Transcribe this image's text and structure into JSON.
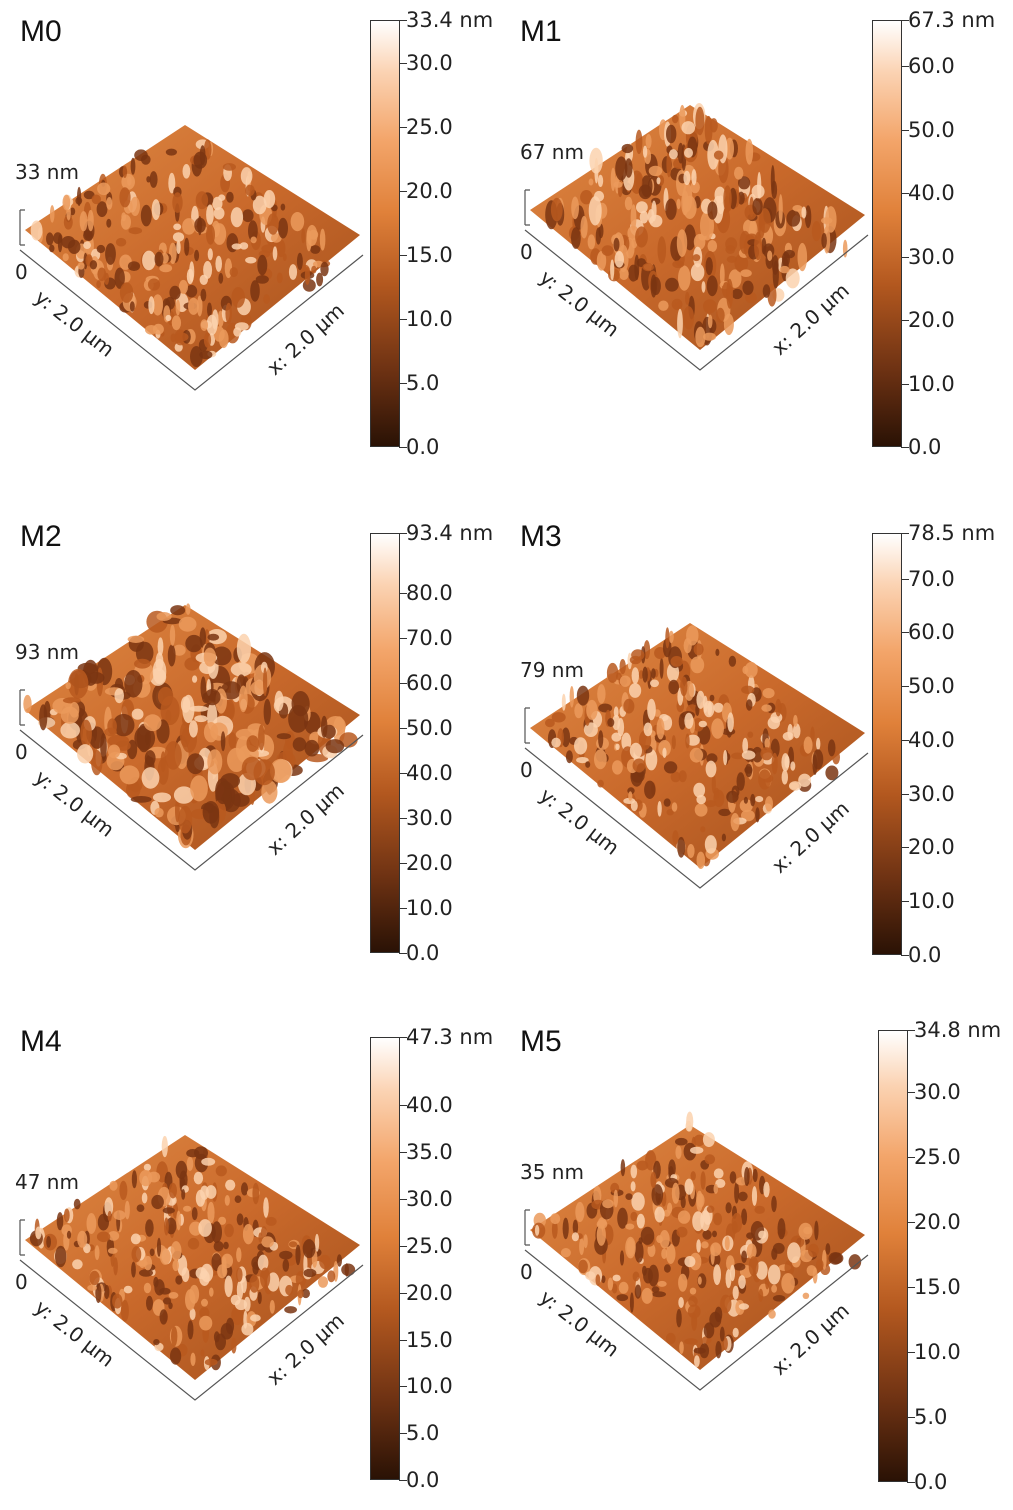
{
  "xy_axis": {
    "y_label": "y: 2.0 µm",
    "x_label": "x: 2.0 µm",
    "z_min_label": "0"
  },
  "colors": {
    "dark": "#2a1205",
    "mid": "#c8692a",
    "light": "#ffffff"
  },
  "panels": [
    {
      "id": "M0",
      "label": "M0",
      "z_max_label": "33 nm",
      "scale_max": "33.4 nm",
      "ticks": [
        "30.0",
        "25.0",
        "20.0",
        "15.0",
        "10.0",
        "5.0",
        "0.0"
      ],
      "tick_values": [
        30,
        25,
        20,
        15,
        10,
        5,
        0
      ],
      "max_value": 33.4
    },
    {
      "id": "M1",
      "label": "M1",
      "z_max_label": "67 nm",
      "scale_max": "67.3 nm",
      "ticks": [
        "60.0",
        "50.0",
        "40.0",
        "30.0",
        "20.0",
        "10.0",
        "0.0"
      ],
      "tick_values": [
        60,
        50,
        40,
        30,
        20,
        10,
        0
      ],
      "max_value": 67.3
    },
    {
      "id": "M2",
      "label": "M2",
      "z_max_label": "93 nm",
      "scale_max": "93.4 nm",
      "ticks": [
        "80.0",
        "70.0",
        "60.0",
        "50.0",
        "40.0",
        "30.0",
        "20.0",
        "10.0",
        "0.0"
      ],
      "tick_values": [
        80,
        70,
        60,
        50,
        40,
        30,
        20,
        10,
        0
      ],
      "max_value": 93.4
    },
    {
      "id": "M3",
      "label": "M3",
      "z_max_label": "79 nm",
      "scale_max": "78.5 nm",
      "ticks": [
        "70.0",
        "60.0",
        "50.0",
        "40.0",
        "30.0",
        "20.0",
        "10.0",
        "0.0"
      ],
      "tick_values": [
        70,
        60,
        50,
        40,
        30,
        20,
        10,
        0
      ],
      "max_value": 78.5
    },
    {
      "id": "M4",
      "label": "M4",
      "z_max_label": "47 nm",
      "scale_max": "47.3 nm",
      "ticks": [
        "40.0",
        "35.0",
        "30.0",
        "25.0",
        "20.0",
        "15.0",
        "10.0",
        "5.0",
        "0.0"
      ],
      "tick_values": [
        40,
        35,
        30,
        25,
        20,
        15,
        10,
        5,
        0
      ],
      "max_value": 47.3
    },
    {
      "id": "M5",
      "label": "M5",
      "z_max_label": "35 nm",
      "scale_max": "34.8 nm",
      "ticks": [
        "30.0",
        "25.0",
        "20.0",
        "15.0",
        "10.0",
        "5.0",
        "0.0"
      ],
      "tick_values": [
        30,
        25,
        20,
        15,
        10,
        5,
        0
      ],
      "max_value": 34.8
    }
  ]
}
